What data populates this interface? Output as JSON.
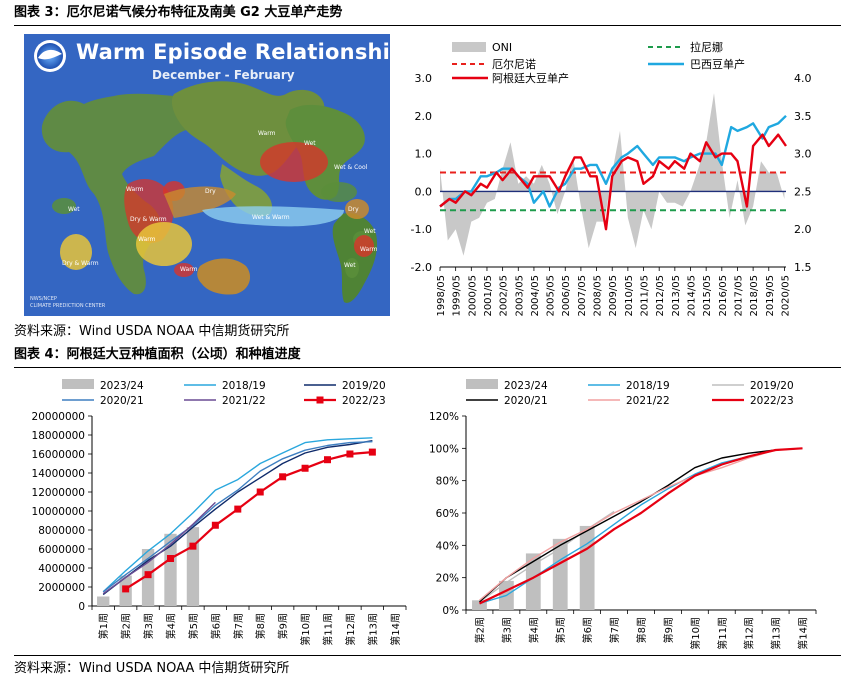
{
  "figure3": {
    "title": "图表 3：厄尔尼诺气候分布特征及南美 G2 大豆单产走势",
    "source": "资料来源：Wind USDA NOAA 中信期货研究所"
  },
  "figure4": {
    "title": "图表 4：阿根廷大豆种植面积（公顷）和种植进度",
    "source": "资料来源：Wind USDA NOAA 中信期货研究所"
  },
  "map": {
    "title": "Warm Episode Relationships",
    "subtitle": "December - February",
    "credit": "NWS/NCEP\nCLIMATE PREDICTION CENTER",
    "labels": [
      "Warm",
      "Wet",
      "Wet & Cool",
      "Dry",
      "Warm",
      "Dry & Warm",
      "Wet & Warm",
      "Wet",
      "Warm",
      "Dry & Warm",
      "Dry",
      "Wet",
      "Warm",
      "Wet",
      "Warm"
    ],
    "colors": {
      "ocean": "#3466c2",
      "warm": "#d9342a",
      "dry": "#c98b2e",
      "wet": "#5a8f3a",
      "yellow": "#e8c43a",
      "cool": "#8fd0f0"
    }
  },
  "chart_data": [
    {
      "id": "enso-yield",
      "type": "line",
      "legend": [
        "ONI",
        "拉尼娜",
        "厄尔尼诺",
        "巴西豆单产",
        "阿根廷大豆单产"
      ],
      "x_ticks": [
        "1998/05",
        "1999/05",
        "2000/05",
        "2001/05",
        "2002/05",
        "2003/05",
        "2004/05",
        "2005/05",
        "2006/05",
        "2007/05",
        "2008/05",
        "2009/05",
        "2010/05",
        "2011/05",
        "2012/05",
        "2013/05",
        "2014/05",
        "2015/05",
        "2016/05",
        "2017/05",
        "2018/05",
        "2019/05",
        "2020/05"
      ],
      "y_left": {
        "ticks": [
          "3.0",
          "2.0",
          "1.0",
          "0.0",
          "-1.0",
          "-2.0"
        ],
        "lim": [
          -2.0,
          3.0
        ]
      },
      "y_right": {
        "ticks": [
          "4.0",
          "3.5",
          "3.0",
          "2.5",
          "2.0",
          "1.5"
        ],
        "lim": [
          1.5,
          4.0
        ]
      },
      "thresholds": {
        "el_nino": 0.5,
        "la_nina": -0.5
      },
      "oni_x": [
        1998.4,
        1998.9,
        1999.4,
        1999.9,
        2000.4,
        2000.9,
        2001.4,
        2001.9,
        2002.4,
        2002.9,
        2003.4,
        2003.9,
        2004.4,
        2004.9,
        2005.4,
        2005.9,
        2006.4,
        2006.9,
        2007.4,
        2007.9,
        2008.4,
        2008.9,
        2009.4,
        2009.9,
        2010.4,
        2010.9,
        2011.4,
        2011.9,
        2012.4,
        2012.9,
        2013.4,
        2013.9,
        2014.4,
        2014.9,
        2015.4,
        2015.9,
        2016.4,
        2016.9,
        2017.4,
        2017.9,
        2018.4,
        2018.9,
        2019.4,
        2019.9,
        2020.4
      ],
      "oni": [
        0.6,
        -1.3,
        -1.0,
        -1.7,
        -0.8,
        -0.7,
        -0.3,
        -0.2,
        0.6,
        1.3,
        0.2,
        0.4,
        0.2,
        0.7,
        0.2,
        -0.6,
        0.0,
        0.9,
        -0.4,
        -1.5,
        -0.8,
        -0.8,
        0.5,
        1.6,
        -0.7,
        -1.5,
        -0.5,
        -1.0,
        0.0,
        -0.3,
        -0.3,
        -0.4,
        0.0,
        0.6,
        1.3,
        2.6,
        0.8,
        -0.7,
        0.3,
        -0.9,
        -0.4,
        0.8,
        0.5,
        0.5,
        -0.2
      ],
      "series": [
        {
          "name": "巴西豆单产",
          "x": [
            1998.4,
            1999.0,
            1999.4,
            2000.0,
            2000.4,
            2001.0,
            2001.4,
            2002.0,
            2002.4,
            2003.0,
            2003.4,
            2004.0,
            2004.4,
            2005.0,
            2005.4,
            2006.0,
            2006.4,
            2007.0,
            2007.4,
            2008.0,
            2008.4,
            2009.0,
            2009.4,
            2010.0,
            2010.4,
            2011.0,
            2011.4,
            2012.0,
            2012.4,
            2013.0,
            2013.4,
            2014.0,
            2014.4,
            2015.0,
            2015.4,
            2016.0,
            2016.4,
            2017.0,
            2017.4,
            2018.0,
            2018.4,
            2019.0,
            2019.4,
            2020.0,
            2020.5
          ],
          "values": [
            2.3,
            2.4,
            2.4,
            2.5,
            2.5,
            2.7,
            2.7,
            2.75,
            2.8,
            2.8,
            2.7,
            2.6,
            2.35,
            2.5,
            2.3,
            2.55,
            2.6,
            2.8,
            2.8,
            2.85,
            2.85,
            2.6,
            2.8,
            2.95,
            3.0,
            3.1,
            3.0,
            2.85,
            2.95,
            2.95,
            2.95,
            2.9,
            2.95,
            3.0,
            3.0,
            3.0,
            2.85,
            3.35,
            3.3,
            3.35,
            3.4,
            3.2,
            3.35,
            3.4,
            3.5
          ]
        },
        {
          "name": "阿根廷大豆单产",
          "x": [
            1998.4,
            1999.0,
            1999.4,
            2000.0,
            2000.4,
            2001.0,
            2001.4,
            2002.0,
            2002.4,
            2003.0,
            2003.4,
            2004.0,
            2004.4,
            2005.0,
            2005.4,
            2006.0,
            2006.4,
            2007.0,
            2007.4,
            2008.0,
            2008.4,
            2009.0,
            2009.4,
            2010.0,
            2010.4,
            2011.0,
            2011.4,
            2012.0,
            2012.4,
            2013.0,
            2013.4,
            2014.0,
            2014.4,
            2015.0,
            2015.4,
            2016.0,
            2016.4,
            2017.0,
            2017.4,
            2018.0,
            2018.4,
            2019.0,
            2019.4,
            2020.0,
            2020.5
          ],
          "values": [
            2.3,
            2.4,
            2.35,
            2.5,
            2.45,
            2.6,
            2.55,
            2.75,
            2.65,
            2.8,
            2.7,
            2.55,
            2.7,
            2.7,
            2.7,
            2.5,
            2.7,
            2.95,
            2.95,
            2.7,
            2.7,
            2.0,
            2.7,
            2.9,
            2.95,
            2.9,
            2.6,
            2.7,
            2.9,
            2.8,
            2.9,
            2.8,
            3.0,
            2.9,
            3.15,
            2.95,
            3.0,
            3.0,
            2.9,
            2.3,
            3.1,
            3.25,
            3.1,
            3.25,
            3.1
          ]
        }
      ]
    },
    {
      "id": "planting-area",
      "type": "line",
      "categories": [
        "第1周",
        "第2周",
        "第3周",
        "第4周",
        "第5周",
        "第6周",
        "第7周",
        "第8周",
        "第9周",
        "第10周",
        "第11周",
        "第12周",
        "第13周",
        "第14周"
      ],
      "y_ticks": [
        "20000000",
        "18000000",
        "16000000",
        "14000000",
        "12000000",
        "10000000",
        "8000000",
        "6000000",
        "4000000",
        "2000000",
        "0"
      ],
      "ylim": [
        0,
        20000000
      ],
      "bars": {
        "name": "2023/24",
        "values": [
          1000000,
          3200000,
          6000000,
          7600000,
          8300000,
          null,
          null,
          null,
          null,
          null,
          null,
          null,
          null,
          null
        ]
      },
      "series": [
        {
          "name": "2018/19",
          "values": [
            1500000,
            3700000,
            5800000,
            7600000,
            9800000,
            12200000,
            13300000,
            15000000,
            16100000,
            17200000,
            17500000,
            17600000,
            17700000,
            null
          ]
        },
        {
          "name": "2019/20",
          "values": [
            1200000,
            3000000,
            4800000,
            6300000,
            8300000,
            10200000,
            12000000,
            13500000,
            15000000,
            16100000,
            16700000,
            17000000,
            17400000,
            null
          ]
        },
        {
          "name": "2020/21",
          "values": [
            1500000,
            3300000,
            5000000,
            6800000,
            8500000,
            10600000,
            12200000,
            14200000,
            15500000,
            16400000,
            16900000,
            17200000,
            17300000,
            null
          ]
        },
        {
          "name": "2021/22",
          "values": [
            1300000,
            3000000,
            4600000,
            6500000,
            8600000,
            10900000,
            null,
            null,
            null,
            null,
            null,
            null,
            null,
            null
          ]
        },
        {
          "name": "2022/23",
          "values": [
            null,
            1800000,
            3300000,
            5000000,
            6300000,
            8500000,
            10200000,
            12000000,
            13600000,
            14500000,
            15400000,
            16000000,
            16200000,
            null
          ]
        }
      ]
    },
    {
      "id": "planting-progress",
      "type": "line",
      "categories": [
        "第2周",
        "第3周",
        "第4周",
        "第5周",
        "第6周",
        "第7周",
        "第8周",
        "第9周",
        "第10周",
        "第11周",
        "第12周",
        "第13周",
        "第14周"
      ],
      "y_ticks": [
        "120%",
        "100%",
        "80%",
        "60%",
        "40%",
        "20%",
        "0%"
      ],
      "ylim": [
        0,
        120
      ],
      "bars": {
        "name": "2023/24",
        "values": [
          6,
          18,
          35,
          44,
          52,
          null,
          null,
          null,
          null,
          null,
          null,
          null,
          null
        ]
      },
      "series": [
        {
          "name": "2018/19",
          "values": [
            4,
            9,
            20,
            31,
            41,
            53,
            65,
            75,
            84,
            91,
            95,
            99,
            100
          ]
        },
        {
          "name": "2019/20",
          "values": [
            5,
            17,
            28,
            38,
            50,
            61,
            null,
            null,
            null,
            null,
            null,
            null,
            null
          ]
        },
        {
          "name": "2020/21",
          "values": [
            5,
            20,
            30,
            40,
            49,
            58,
            67,
            77,
            88,
            94,
            97,
            99,
            100
          ]
        },
        {
          "name": "2021/22",
          "values": [
            6,
            20,
            32,
            42,
            50,
            60,
            68,
            76,
            83,
            88,
            94,
            99,
            100
          ]
        },
        {
          "name": "2022/23",
          "values": [
            4,
            12,
            20,
            29,
            38,
            50,
            60,
            72,
            83,
            90,
            95,
            99,
            100
          ]
        }
      ]
    }
  ],
  "colors": {
    "oni": "#c8c8c8",
    "la_nina": "#1e9b4c",
    "el_nino": "#e8211d",
    "brazil": "#1fa8e0",
    "argentina": "#e60012",
    "bar": "#bfbfbf",
    "s2018": "#2aa7dd",
    "s2019_left": "#0f2b6b",
    "s2019_right": "#bfbfbf",
    "s2020_left": "#3f7fc1",
    "s2020_right": "#000000",
    "s2021_left": "#6a4c93",
    "s2021_right": "#f2a1a1",
    "s2022": "#e60012"
  }
}
